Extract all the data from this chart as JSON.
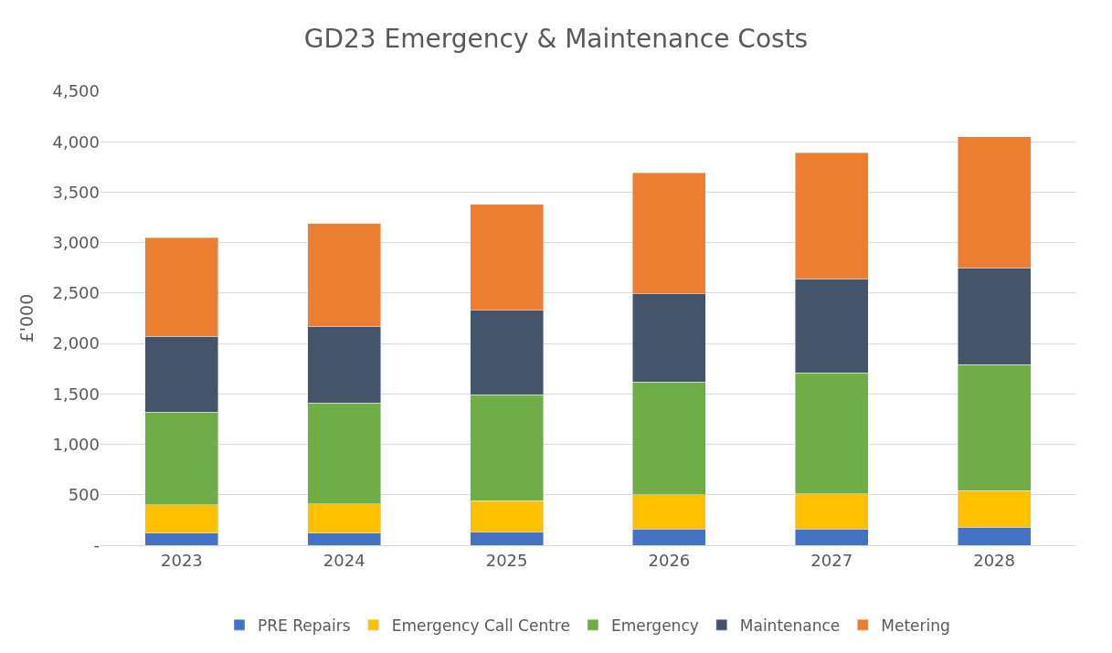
{
  "chart_data": {
    "type": "bar",
    "title": "GD23 Emergency & Maintenance Costs",
    "ylabel": "£'000",
    "categories": [
      "2023",
      "2024",
      "2025",
      "2026",
      "2027",
      "2028"
    ],
    "stacked": true,
    "series": [
      {
        "name": "PRE Repairs",
        "color": "#4472c4",
        "values": [
          120,
          120,
          130,
          160,
          160,
          180
        ]
      },
      {
        "name": "Emergency Call Centre",
        "color": "#ffc000",
        "values": [
          280,
          290,
          310,
          340,
          350,
          360
        ]
      },
      {
        "name": "Emergency",
        "color": "#70ad47",
        "values": [
          920,
          1000,
          1050,
          1120,
          1200,
          1250
        ]
      },
      {
        "name": "Maintenance",
        "color": "#44546a",
        "values": [
          750,
          760,
          840,
          870,
          930,
          960
        ]
      },
      {
        "name": "Metering",
        "color": "#ed7d31",
        "values": [
          980,
          1020,
          1050,
          1200,
          1250,
          1300
        ]
      }
    ],
    "ylim": [
      0,
      4500
    ],
    "yticks": [
      {
        "value": 0,
        "label": "-"
      },
      500,
      {
        "value": 1000,
        "label": "1,000"
      },
      {
        "value": 1500,
        "label": "1,500"
      },
      {
        "value": 2000,
        "label": "2,000"
      },
      {
        "value": 2500,
        "label": "2,500"
      },
      {
        "value": 3000,
        "label": "3,000"
      },
      {
        "value": 3500,
        "label": "3,500"
      },
      {
        "value": 4000,
        "label": "4,000"
      },
      {
        "value": 4500,
        "label": "4,500"
      }
    ],
    "grid": "y",
    "legend": "bottom"
  }
}
